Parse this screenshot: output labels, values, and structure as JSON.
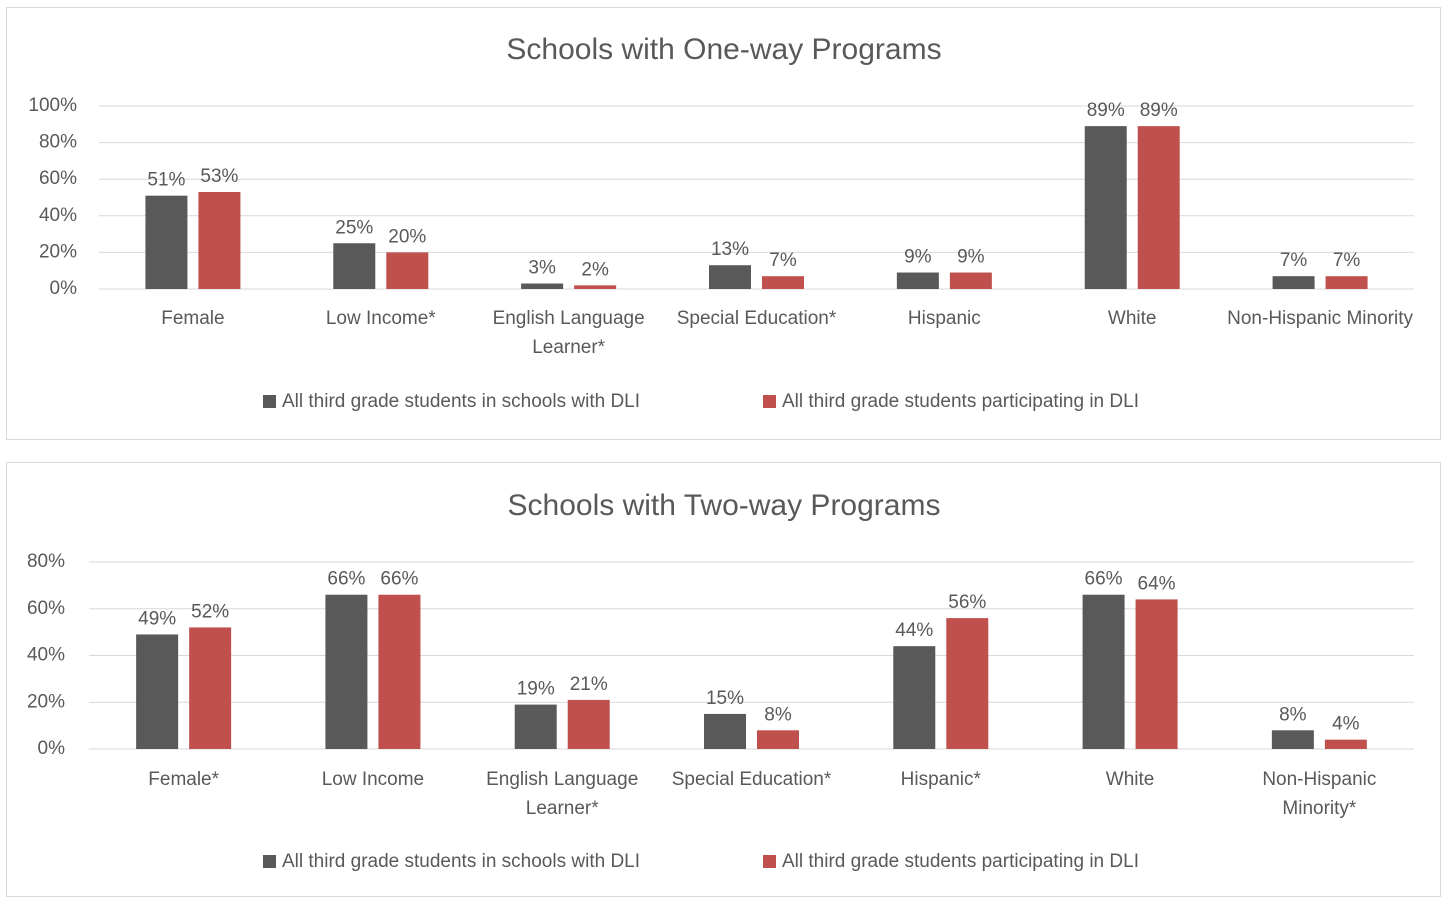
{
  "chart_data": [
    {
      "type": "bar",
      "title": "Schools with One-way Programs",
      "categories": [
        "Female",
        "Low Income*",
        "English Language Learner*",
        "Special Education*",
        "Hispanic",
        "White",
        "Non-Hispanic Minority"
      ],
      "series": [
        {
          "name": "All third grade students in schools with DLI",
          "color": "#595959",
          "values": [
            51,
            25,
            3,
            13,
            9,
            89,
            7
          ],
          "value_labels": [
            "51%",
            "25%",
            "3%",
            "13%",
            "9%",
            "89%",
            "7%"
          ]
        },
        {
          "name": "All third grade students participating in DLI",
          "color": "#c0504d",
          "values": [
            53,
            20,
            2,
            7,
            9,
            89,
            7
          ],
          "value_labels": [
            "53%",
            "20%",
            "2%",
            "7%",
            "9%",
            "89%",
            "7%"
          ]
        }
      ],
      "ylim": [
        0,
        100
      ],
      "yticks": [
        {
          "value": 0,
          "label": "0%"
        },
        {
          "value": 20,
          "label": "20%"
        },
        {
          "value": 40,
          "label": "40%"
        },
        {
          "value": 60,
          "label": "60%"
        },
        {
          "value": 80,
          "label": "80%"
        },
        {
          "value": 100,
          "label": "100%"
        }
      ],
      "grid": true,
      "legend": "bottom"
    },
    {
      "type": "bar",
      "title": "Schools with Two-way Programs",
      "categories": [
        "Female*",
        "Low Income",
        "English Language Learner*",
        "Special Education*",
        "Hispanic*",
        "White",
        "Non-Hispanic Minority*"
      ],
      "series": [
        {
          "name": "All third grade students in schools with DLI",
          "color": "#595959",
          "values": [
            49,
            66,
            19,
            15,
            44,
            66,
            8
          ],
          "value_labels": [
            "49%",
            "66%",
            "19%",
            "15%",
            "44%",
            "66%",
            "8%"
          ]
        },
        {
          "name": "All third grade students participating in DLI",
          "color": "#c0504d",
          "values": [
            52,
            66,
            21,
            8,
            56,
            64,
            4
          ],
          "value_labels": [
            "52%",
            "66%",
            "21%",
            "8%",
            "56%",
            "64%",
            "4%"
          ]
        }
      ],
      "ylim": [
        0,
        80
      ],
      "yticks": [
        {
          "value": 0,
          "label": "0%"
        },
        {
          "value": 20,
          "label": "20%"
        },
        {
          "value": 40,
          "label": "40%"
        },
        {
          "value": 60,
          "label": "60%"
        },
        {
          "value": 80,
          "label": "80%"
        }
      ],
      "grid": true,
      "legend": "bottom"
    }
  ]
}
